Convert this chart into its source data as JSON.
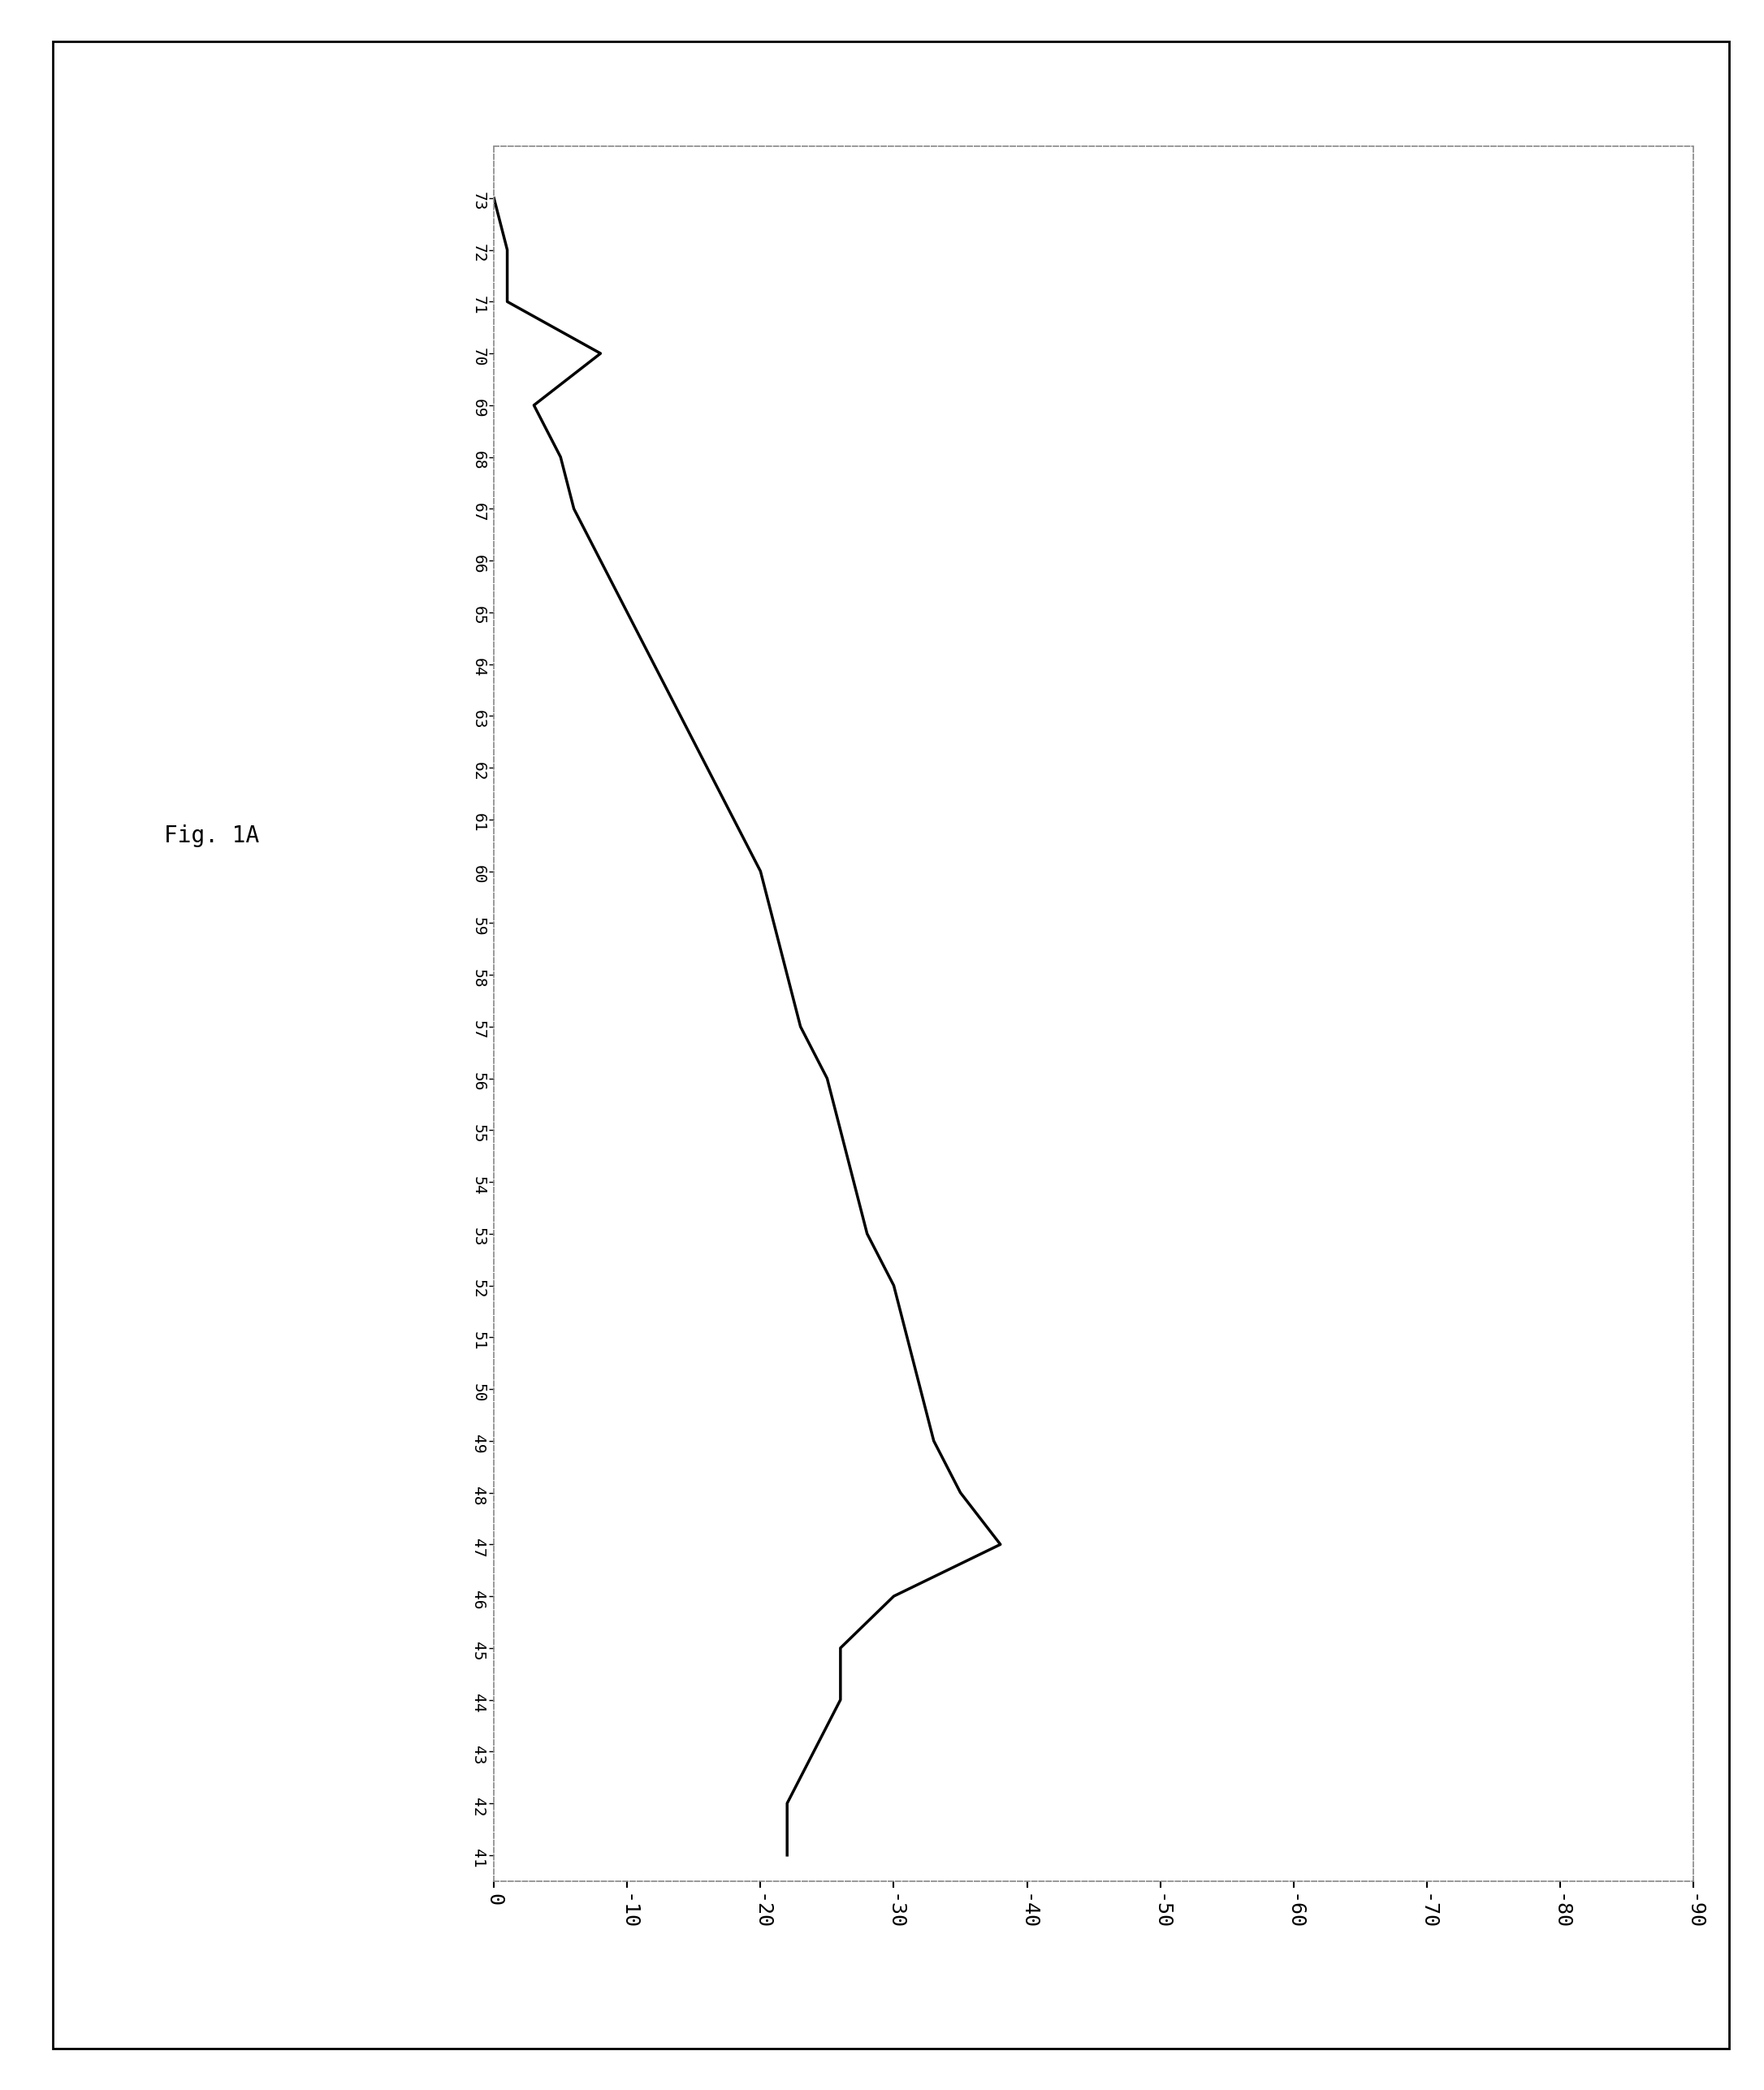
{
  "fig_label": "Fig. 1A",
  "x_labels": [
    41,
    42,
    43,
    44,
    45,
    46,
    47,
    48,
    49,
    50,
    51,
    52,
    53,
    54,
    55,
    56,
    57,
    58,
    59,
    60,
    61,
    62,
    63,
    64,
    65,
    66,
    67,
    68,
    69,
    70,
    71,
    72,
    73
  ],
  "y_values": [
    -22,
    -22,
    -24,
    -26,
    -26,
    -30,
    -38,
    -35,
    -33,
    -32,
    -31,
    -30,
    -28,
    -27,
    -26,
    -25,
    -23,
    -22,
    -21,
    -20,
    -18,
    -16,
    -14,
    -12,
    -10,
    -8,
    -6,
    -5,
    -3,
    -8,
    -1,
    -1,
    0
  ],
  "xlim_left": 0,
  "xlim_right": -90,
  "x_ticks": [
    0,
    -10,
    -20,
    -30,
    -40,
    -50,
    -60,
    -70,
    -80,
    -90
  ],
  "ylim_bottom": 40.5,
  "ylim_top": 74.0,
  "line_color": "#000000",
  "line_width": 2.5,
  "fig_bg": "#ffffff",
  "outer_border_color": "#000000",
  "plot_bg": "#ffffff",
  "inner_border_style": "dashed"
}
